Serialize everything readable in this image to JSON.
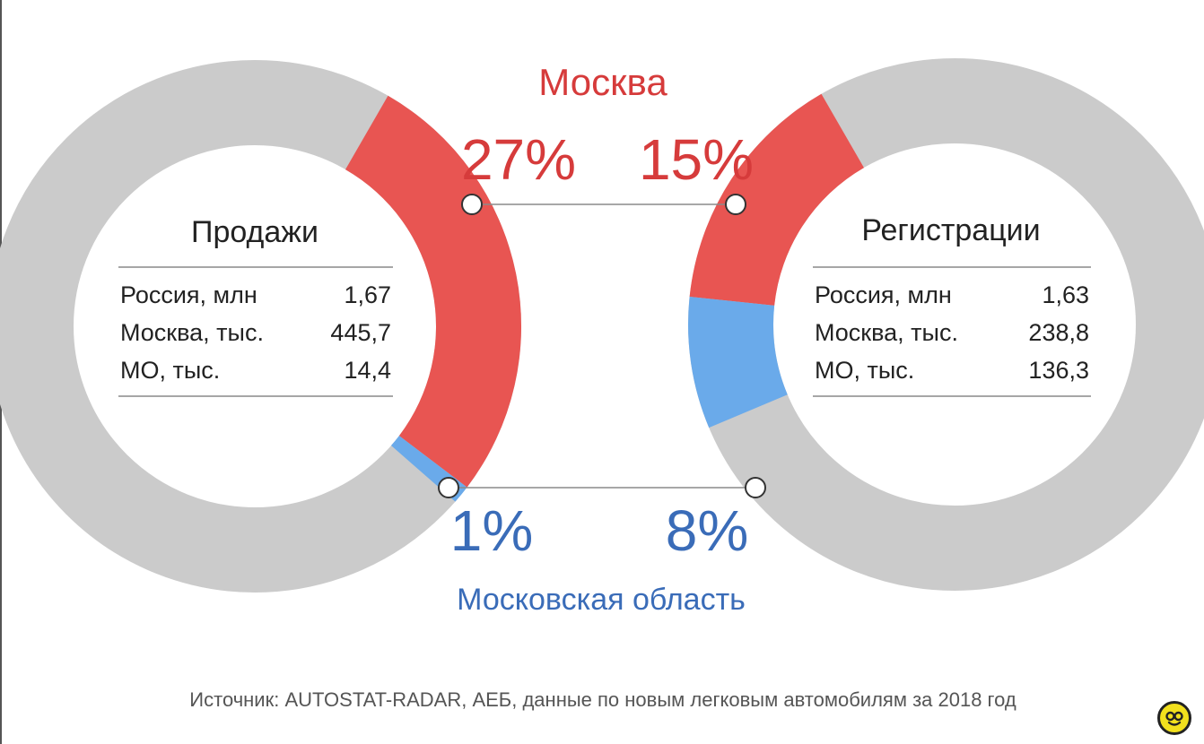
{
  "chart_data": {
    "type": "pie",
    "colors": {
      "moscow": "#e85552",
      "region": "#6aaaea",
      "other": "#cbcbcb",
      "moscow_text": "#d63b3b",
      "region_text": "#3a6cb8"
    },
    "series_labels": {
      "moscow": "Москва",
      "region": "Московская область"
    },
    "charts": [
      {
        "title": "Продажи",
        "slices": {
          "moscow_pct": 27,
          "region_pct": 1
        },
        "pct_labels": {
          "moscow": "27%",
          "region": "1%"
        },
        "rows": [
          {
            "label": "Россия, млн",
            "value": "1,67"
          },
          {
            "label": "Москва, тыс.",
            "value": "445,7"
          },
          {
            "label": "МО, тыс.",
            "value": "14,4"
          }
        ]
      },
      {
        "title": "Регистрации",
        "slices": {
          "moscow_pct": 15,
          "region_pct": 8
        },
        "pct_labels": {
          "moscow": "15%",
          "region": "8%"
        },
        "rows": [
          {
            "label": "Россия, млн",
            "value": "1,63"
          },
          {
            "label": "Москва, тыс.",
            "value": "238,8"
          },
          {
            "label": "МО, тыс.",
            "value": "136,3"
          }
        ]
      }
    ],
    "source": "Источник: AUTOSTAT-RADAR, АЕБ, данные по новым легковым автомобилям за 2018 год"
  },
  "logo_icon": "smiley-logo-icon"
}
